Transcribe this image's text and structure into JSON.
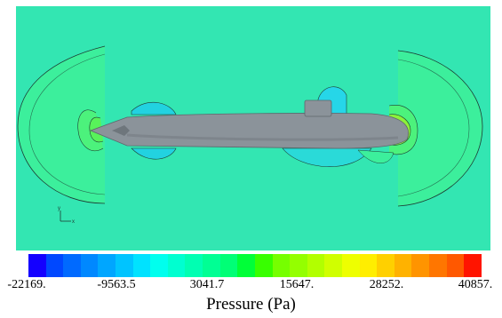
{
  "colors": {
    "background_field": "#33e6b2",
    "hull": "#8b939a",
    "hull_shade": "#6e767c",
    "contour_line": "#1d3c33"
  },
  "legend": {
    "title": "Pressure (Pa)",
    "min": -22169,
    "max": 40857,
    "tick_labels": [
      "-22169.",
      "-9563.5",
      "3041.7",
      "15647.",
      "28252.",
      "40857."
    ],
    "colormap": [
      "#1400ff",
      "#0048ff",
      "#006aff",
      "#0088ff",
      "#00a6ff",
      "#00c4ff",
      "#00e2ff",
      "#00ffee",
      "#00ffd0",
      "#00ffb2",
      "#00ff94",
      "#00ff76",
      "#00ff38",
      "#38ff00",
      "#76ff00",
      "#94ff00",
      "#b2ff00",
      "#d0ff00",
      "#eeff00",
      "#ffee00",
      "#ffd000",
      "#ffb200",
      "#ff9400",
      "#ff7600",
      "#ff5800",
      "#ff1400"
    ]
  },
  "icons": {
    "axis_triad": "axis-triad-icon"
  }
}
